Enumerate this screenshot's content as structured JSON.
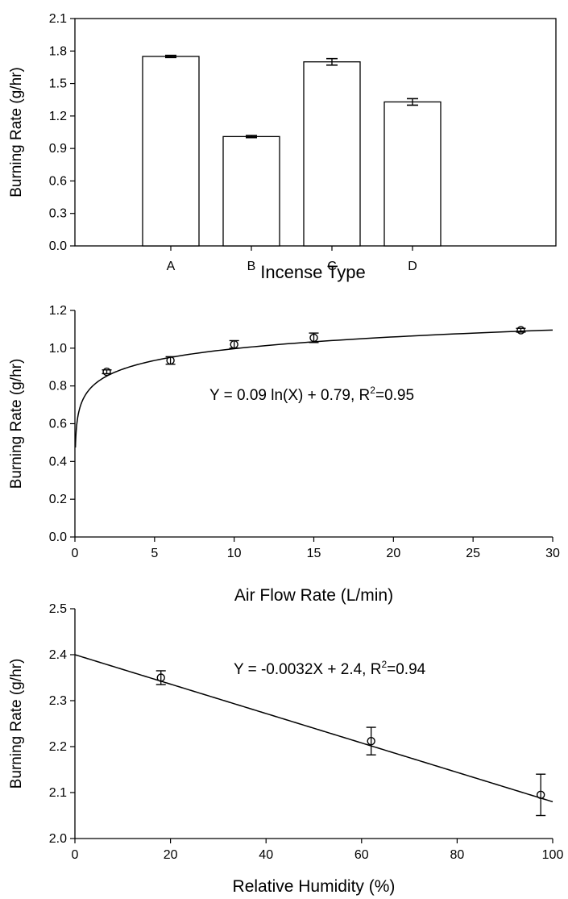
{
  "chart_data": [
    {
      "type": "bar",
      "xlabel": "Incense Type",
      "ylabel": "Burning Rate (g/hr)",
      "ylim": [
        0,
        2.1
      ],
      "yticks": [
        "0.0",
        "0.3",
        "0.6",
        "0.9",
        "1.2",
        "1.5",
        "1.8",
        "2.1"
      ],
      "categories": [
        "A",
        "B",
        "C",
        "D"
      ],
      "values": [
        1.75,
        1.01,
        1.7,
        1.33
      ],
      "errors": [
        0.01,
        0.01,
        0.03,
        0.03
      ]
    },
    {
      "type": "scatter",
      "xlabel": "Air Flow Rate (L/min)",
      "ylabel": "Burning Rate (g/hr)",
      "xlim": [
        0,
        30
      ],
      "ylim": [
        0,
        1.2
      ],
      "xticks": [
        "0",
        "5",
        "10",
        "15",
        "20",
        "25",
        "30"
      ],
      "yticks": [
        "0.0",
        "0.2",
        "0.4",
        "0.6",
        "0.8",
        "1.0",
        "1.2"
      ],
      "x": [
        2,
        6,
        10,
        15,
        28
      ],
      "y": [
        0.875,
        0.935,
        1.02,
        1.055,
        1.095
      ],
      "errors": [
        0.01,
        0.02,
        0.02,
        0.025,
        0.01
      ],
      "fit": {
        "kind": "log",
        "a": 0.09,
        "b": 0.79
      },
      "annotation": {
        "main": "Y = 0.09 ln(X) + 0.79, R",
        "sup": "2",
        "tail": "=0.95"
      }
    },
    {
      "type": "scatter",
      "xlabel": "Relative Humidity (%)",
      "ylabel": "Burning Rate (g/hr)",
      "xlim": [
        0,
        100
      ],
      "ylim": [
        2.0,
        2.5
      ],
      "xticks": [
        "0",
        "20",
        "40",
        "60",
        "80",
        "100"
      ],
      "yticks": [
        "2.0",
        "2.1",
        "2.2",
        "2.3",
        "2.4",
        "2.5"
      ],
      "x": [
        18,
        62,
        97.5
      ],
      "y": [
        2.35,
        2.212,
        2.095
      ],
      "errors": [
        0.015,
        0.03,
        0.045
      ],
      "fit": {
        "kind": "linear",
        "a": -0.0032,
        "b": 2.4
      },
      "annotation": {
        "main": "Y = -0.0032X + 2.4, R",
        "sup": "2",
        "tail": "=0.94"
      }
    }
  ]
}
